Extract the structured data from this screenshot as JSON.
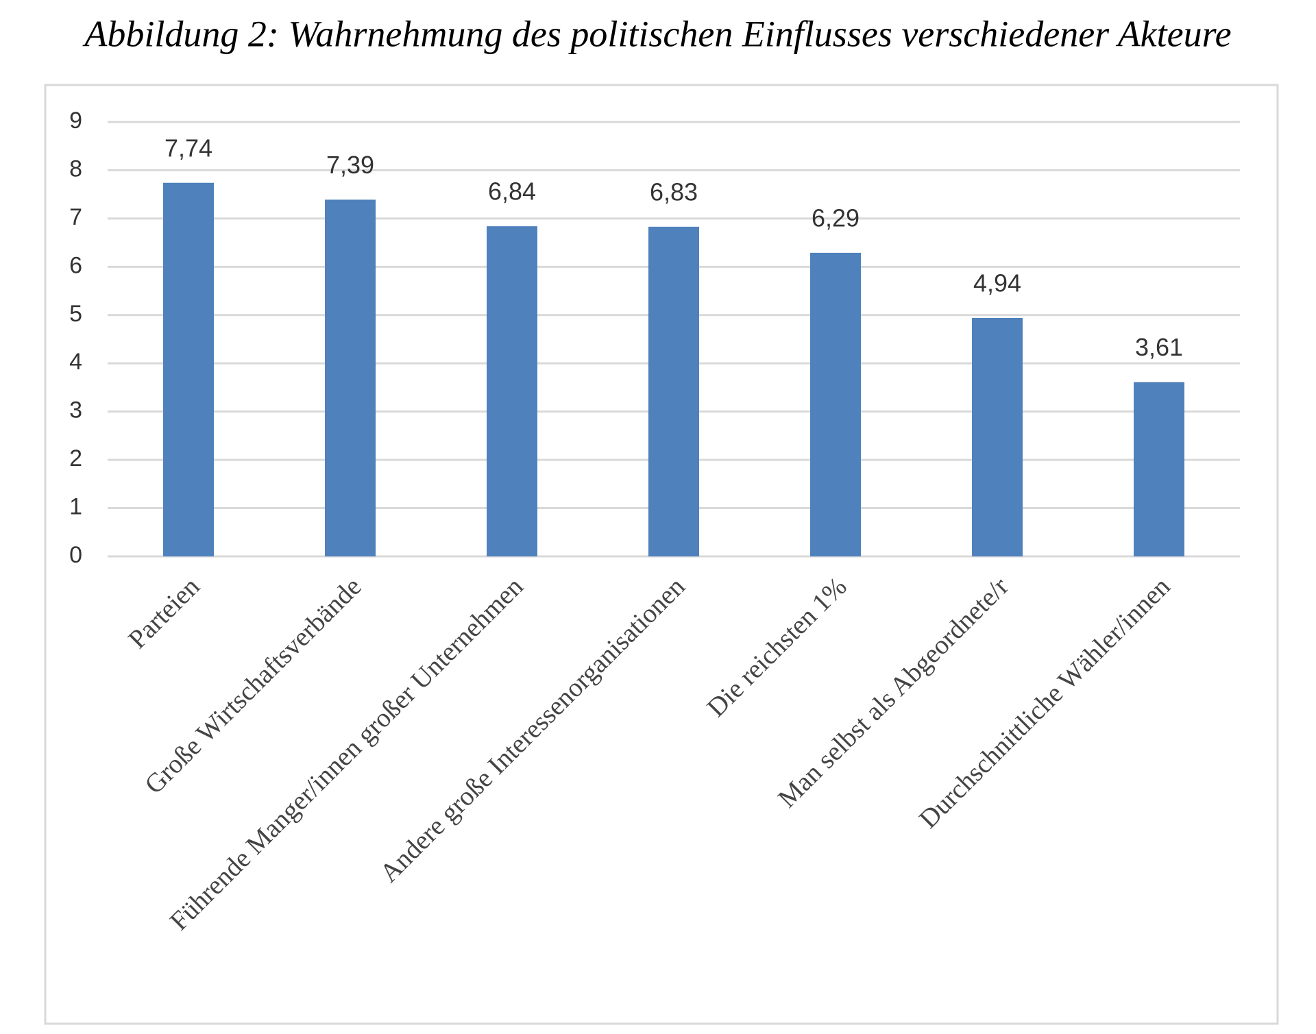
{
  "chart_data": {
    "type": "bar",
    "title": "Abbildung 2: Wahrnehmung des politischen Einflusses verschiedener Akteure",
    "categories": [
      "Parteien",
      "Große Wirtschaftsverbände",
      "Führende Manger/innen großer Unternehmen",
      "Andere große Interessenorganisationen",
      "Die reichsten 1%",
      "Man selbst als Abgeordnete/r",
      "Durchschnittliche Wähler/innen"
    ],
    "values": [
      7.74,
      7.39,
      6.84,
      6.83,
      6.29,
      4.94,
      3.61
    ],
    "value_labels": [
      "7,74",
      "7,39",
      "6,84",
      "6,83",
      "6,29",
      "4,94",
      "3,61"
    ],
    "color": "#4f81bd",
    "ylim": [
      0,
      9
    ],
    "yticks": [
      0,
      1,
      2,
      3,
      4,
      5,
      6,
      7,
      8,
      9
    ],
    "grid": true
  }
}
